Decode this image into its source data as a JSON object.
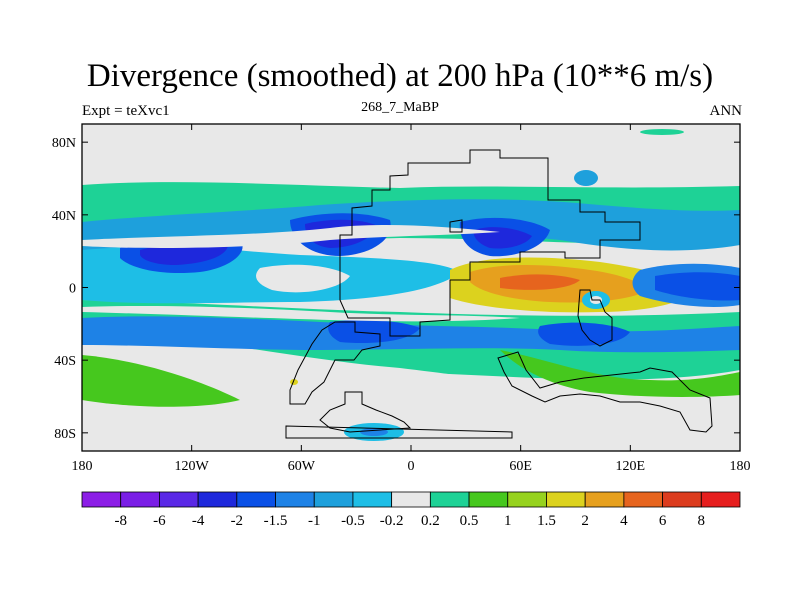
{
  "chart_data": {
    "type": "heatmap",
    "title": "Divergence (smoothed) at 200 hPa (10**6 m/s)",
    "left_label": "Expt = teXvc1",
    "center_label": "268_7_MaBP",
    "right_label": "ANN",
    "x_ticks": [
      {
        "value": -180,
        "label": "180"
      },
      {
        "value": -120,
        "label": "120W"
      },
      {
        "value": -60,
        "label": "60W"
      },
      {
        "value": 0,
        "label": "0"
      },
      {
        "value": 60,
        "label": "60E"
      },
      {
        "value": 120,
        "label": "120E"
      },
      {
        "value": 180,
        "label": "180"
      }
    ],
    "y_ticks": [
      {
        "value": 80,
        "label": "80N"
      },
      {
        "value": 40,
        "label": "40N"
      },
      {
        "value": 0,
        "label": "0"
      },
      {
        "value": -40,
        "label": "40S"
      },
      {
        "value": -80,
        "label": "80S"
      }
    ],
    "xlim": [
      -180,
      180
    ],
    "ylim": [
      -90,
      90
    ],
    "colorbar": {
      "labels": [
        "-8",
        "-6",
        "-4",
        "-2",
        "-1.5",
        "-1",
        "-0.5",
        "-0.2",
        "0.2",
        "0.5",
        "1",
        "1.5",
        "2",
        "4",
        "6",
        "8"
      ],
      "colors": [
        "#8c1ee6",
        "#7a1ee6",
        "#5a28e6",
        "#1e28dc",
        "#0a50e6",
        "#1e82e6",
        "#1ea0dc",
        "#1ebee6",
        "#e8e8e8",
        "#1ed296",
        "#46c81e",
        "#96d21e",
        "#dcd21e",
        "#e6a01e",
        "#e6641e",
        "#dc3c1e",
        "#e61e1e"
      ]
    },
    "features": [
      {
        "name": "northern midlatitude convergence, central Pacific",
        "lon": -150,
        "lat": 18,
        "value": -4
      },
      {
        "name": "northern midlatitude convergence, Atlantic",
        "lon": -40,
        "lat": 30,
        "value": -4
      },
      {
        "name": "northern midlatitude convergence, Asia",
        "lon": 45,
        "lat": 27,
        "value": -2
      },
      {
        "name": "equatorial divergence, Indian Ocean",
        "lon": 65,
        "lat": 0,
        "value": 4
      },
      {
        "name": "equatorial convergence, east Pacific",
        "lon": 165,
        "lat": 0,
        "value": -4
      },
      {
        "name": "southern convergence band, south Atlantic",
        "lon": -20,
        "lat": -25,
        "value": -2
      },
      {
        "name": "southern convergence band, Indian Ocean",
        "lon": 85,
        "lat": -28,
        "value": -2
      },
      {
        "name": "polar southern divergence patch",
        "lon": -25,
        "lat": -80,
        "value": -0.5
      }
    ]
  }
}
